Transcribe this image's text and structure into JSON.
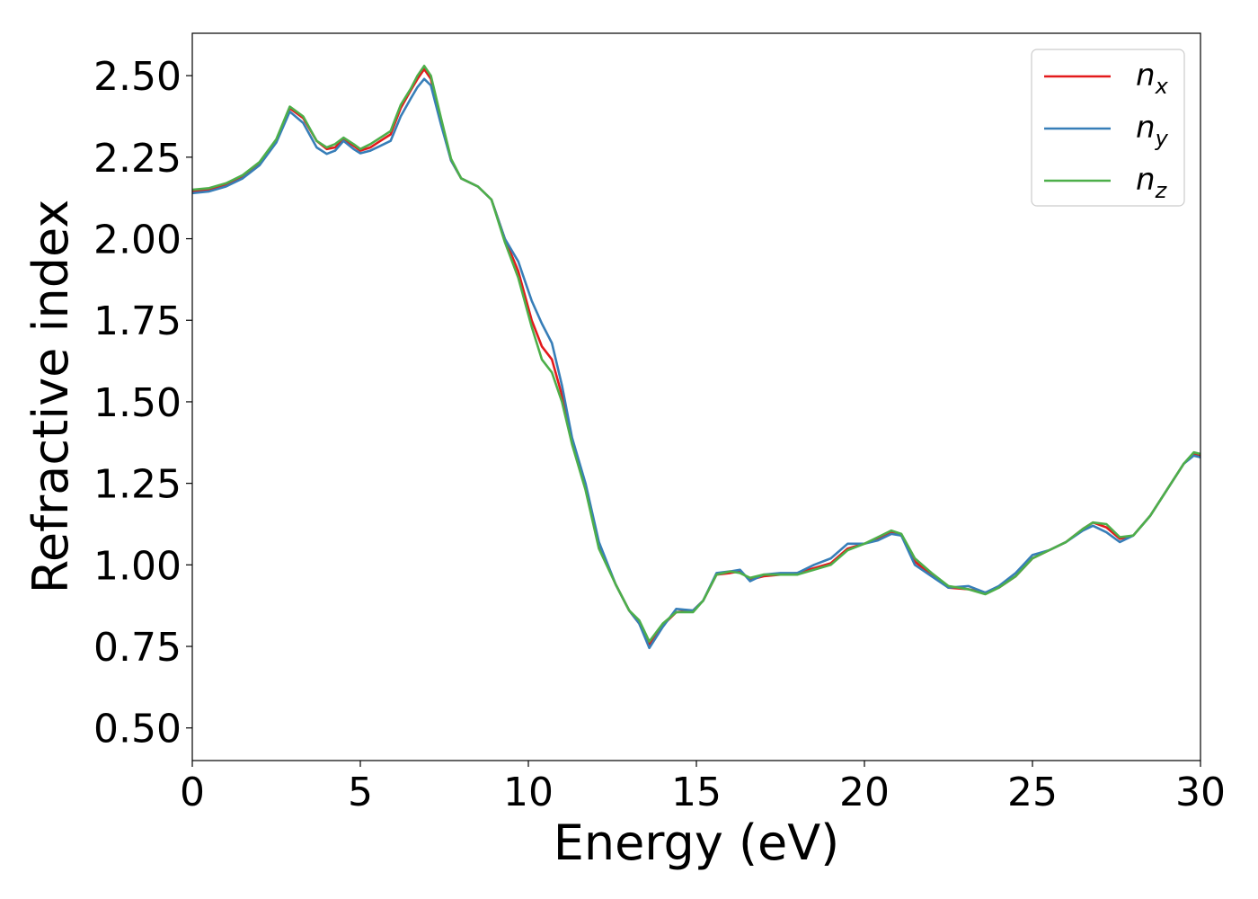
{
  "chart_data": {
    "type": "line",
    "title": "",
    "xlabel": "Energy (eV)",
    "ylabel": "Refractive index",
    "xlim": [
      0,
      30
    ],
    "ylim": [
      0.4,
      2.63
    ],
    "x_ticks": [
      "0",
      "5",
      "10",
      "15",
      "20",
      "25",
      "30"
    ],
    "y_ticks": [
      "0.50",
      "0.75",
      "1.00",
      "1.25",
      "1.50",
      "1.75",
      "2.00",
      "2.25",
      "2.50"
    ],
    "grid": false,
    "legend_position": "top-right",
    "series": [
      {
        "name": "n_x",
        "symbol": "n",
        "subscript": "x",
        "color": "#e31a1c",
        "points": [
          [
            0,
            2.145
          ],
          [
            0.5,
            2.15
          ],
          [
            1,
            2.165
          ],
          [
            1.5,
            2.19
          ],
          [
            2,
            2.23
          ],
          [
            2.5,
            2.3
          ],
          [
            2.9,
            2.4
          ],
          [
            3.3,
            2.37
          ],
          [
            3.7,
            2.3
          ],
          [
            4,
            2.275
          ],
          [
            4.25,
            2.28
          ],
          [
            4.5,
            2.305
          ],
          [
            4.8,
            2.285
          ],
          [
            5,
            2.27
          ],
          [
            5.3,
            2.28
          ],
          [
            5.6,
            2.3
          ],
          [
            5.9,
            2.32
          ],
          [
            6.2,
            2.4
          ],
          [
            6.5,
            2.455
          ],
          [
            6.7,
            2.49
          ],
          [
            6.9,
            2.52
          ],
          [
            7.1,
            2.49
          ],
          [
            7.4,
            2.36
          ],
          [
            7.7,
            2.24
          ],
          [
            8,
            2.185
          ],
          [
            8.5,
            2.16
          ],
          [
            8.9,
            2.12
          ],
          [
            9.3,
            2.0
          ],
          [
            9.7,
            1.9
          ],
          [
            10.1,
            1.75
          ],
          [
            10.4,
            1.67
          ],
          [
            10.7,
            1.63
          ],
          [
            11,
            1.52
          ],
          [
            11.3,
            1.38
          ],
          [
            11.7,
            1.24
          ],
          [
            12.1,
            1.06
          ],
          [
            12.6,
            0.94
          ],
          [
            13,
            0.86
          ],
          [
            13.3,
            0.82
          ],
          [
            13.6,
            0.755
          ],
          [
            14,
            0.815
          ],
          [
            14.4,
            0.855
          ],
          [
            14.9,
            0.86
          ],
          [
            15.2,
            0.89
          ],
          [
            15.6,
            0.97
          ],
          [
            16,
            0.975
          ],
          [
            16.3,
            0.98
          ],
          [
            16.6,
            0.955
          ],
          [
            17,
            0.965
          ],
          [
            17.5,
            0.97
          ],
          [
            18,
            0.975
          ],
          [
            18.5,
            0.99
          ],
          [
            19,
            1.005
          ],
          [
            19.5,
            1.05
          ],
          [
            20,
            1.065
          ],
          [
            20.4,
            1.08
          ],
          [
            20.8,
            1.1
          ],
          [
            21.1,
            1.09
          ],
          [
            21.5,
            1.01
          ],
          [
            22,
            0.97
          ],
          [
            22.5,
            0.93
          ],
          [
            23.1,
            0.925
          ],
          [
            23.6,
            0.915
          ],
          [
            24,
            0.93
          ],
          [
            24.5,
            0.965
          ],
          [
            25,
            1.02
          ],
          [
            25.5,
            1.045
          ],
          [
            26,
            1.07
          ],
          [
            26.5,
            1.11
          ],
          [
            26.8,
            1.13
          ],
          [
            27.2,
            1.115
          ],
          [
            27.6,
            1.08
          ],
          [
            28,
            1.09
          ],
          [
            28.5,
            1.15
          ],
          [
            29,
            1.23
          ],
          [
            29.5,
            1.31
          ],
          [
            29.8,
            1.34
          ],
          [
            30,
            1.335
          ]
        ]
      },
      {
        "name": "n_y",
        "symbol": "n",
        "subscript": "y",
        "color": "#377eb8",
        "points": [
          [
            0,
            2.14
          ],
          [
            0.5,
            2.145
          ],
          [
            1,
            2.16
          ],
          [
            1.5,
            2.185
          ],
          [
            2,
            2.225
          ],
          [
            2.5,
            2.295
          ],
          [
            2.9,
            2.39
          ],
          [
            3.3,
            2.355
          ],
          [
            3.7,
            2.28
          ],
          [
            4,
            2.26
          ],
          [
            4.25,
            2.27
          ],
          [
            4.5,
            2.3
          ],
          [
            4.8,
            2.275
          ],
          [
            5,
            2.262
          ],
          [
            5.3,
            2.27
          ],
          [
            5.6,
            2.285
          ],
          [
            5.9,
            2.3
          ],
          [
            6.2,
            2.375
          ],
          [
            6.5,
            2.43
          ],
          [
            6.7,
            2.465
          ],
          [
            6.9,
            2.49
          ],
          [
            7.1,
            2.47
          ],
          [
            7.4,
            2.35
          ],
          [
            7.7,
            2.24
          ],
          [
            8,
            2.185
          ],
          [
            8.5,
            2.16
          ],
          [
            8.9,
            2.12
          ],
          [
            9.3,
            2.0
          ],
          [
            9.7,
            1.93
          ],
          [
            10.1,
            1.81
          ],
          [
            10.4,
            1.74
          ],
          [
            10.7,
            1.68
          ],
          [
            11,
            1.55
          ],
          [
            11.3,
            1.39
          ],
          [
            11.7,
            1.25
          ],
          [
            12.1,
            1.07
          ],
          [
            12.6,
            0.94
          ],
          [
            13,
            0.86
          ],
          [
            13.3,
            0.82
          ],
          [
            13.6,
            0.745
          ],
          [
            14,
            0.81
          ],
          [
            14.4,
            0.865
          ],
          [
            14.9,
            0.86
          ],
          [
            15.2,
            0.89
          ],
          [
            15.6,
            0.975
          ],
          [
            16,
            0.98
          ],
          [
            16.3,
            0.985
          ],
          [
            16.6,
            0.95
          ],
          [
            17,
            0.97
          ],
          [
            17.5,
            0.975
          ],
          [
            18,
            0.975
          ],
          [
            18.5,
            1.0
          ],
          [
            19,
            1.02
          ],
          [
            19.5,
            1.065
          ],
          [
            20,
            1.065
          ],
          [
            20.4,
            1.075
          ],
          [
            20.8,
            1.095
          ],
          [
            21.1,
            1.09
          ],
          [
            21.5,
            1.0
          ],
          [
            22,
            0.965
          ],
          [
            22.5,
            0.93
          ],
          [
            23.1,
            0.935
          ],
          [
            23.6,
            0.915
          ],
          [
            24,
            0.935
          ],
          [
            24.5,
            0.975
          ],
          [
            25,
            1.03
          ],
          [
            25.5,
            1.045
          ],
          [
            26,
            1.07
          ],
          [
            26.5,
            1.105
          ],
          [
            26.8,
            1.12
          ],
          [
            27.2,
            1.1
          ],
          [
            27.6,
            1.07
          ],
          [
            28,
            1.09
          ],
          [
            28.5,
            1.15
          ],
          [
            29,
            1.23
          ],
          [
            29.5,
            1.31
          ],
          [
            29.8,
            1.335
          ],
          [
            30,
            1.33
          ]
        ]
      },
      {
        "name": "n_z",
        "symbol": "n",
        "subscript": "z",
        "color": "#4daf4a",
        "points": [
          [
            0,
            2.15
          ],
          [
            0.5,
            2.155
          ],
          [
            1,
            2.17
          ],
          [
            1.5,
            2.195
          ],
          [
            2,
            2.235
          ],
          [
            2.5,
            2.305
          ],
          [
            2.9,
            2.405
          ],
          [
            3.3,
            2.375
          ],
          [
            3.7,
            2.3
          ],
          [
            4,
            2.28
          ],
          [
            4.25,
            2.29
          ],
          [
            4.5,
            2.31
          ],
          [
            4.8,
            2.29
          ],
          [
            5,
            2.275
          ],
          [
            5.3,
            2.29
          ],
          [
            5.6,
            2.31
          ],
          [
            5.9,
            2.33
          ],
          [
            6.2,
            2.41
          ],
          [
            6.5,
            2.46
          ],
          [
            6.7,
            2.5
          ],
          [
            6.9,
            2.53
          ],
          [
            7.1,
            2.5
          ],
          [
            7.4,
            2.37
          ],
          [
            7.7,
            2.245
          ],
          [
            8,
            2.185
          ],
          [
            8.5,
            2.16
          ],
          [
            8.9,
            2.12
          ],
          [
            9.3,
            1.99
          ],
          [
            9.7,
            1.88
          ],
          [
            10.1,
            1.73
          ],
          [
            10.4,
            1.63
          ],
          [
            10.7,
            1.59
          ],
          [
            11,
            1.5
          ],
          [
            11.3,
            1.37
          ],
          [
            11.7,
            1.23
          ],
          [
            12.1,
            1.05
          ],
          [
            12.6,
            0.94
          ],
          [
            13,
            0.86
          ],
          [
            13.3,
            0.83
          ],
          [
            13.6,
            0.765
          ],
          [
            14,
            0.82
          ],
          [
            14.4,
            0.855
          ],
          [
            14.9,
            0.855
          ],
          [
            15.2,
            0.89
          ],
          [
            15.6,
            0.97
          ],
          [
            16,
            0.98
          ],
          [
            16.3,
            0.975
          ],
          [
            16.6,
            0.96
          ],
          [
            17,
            0.97
          ],
          [
            17.5,
            0.97
          ],
          [
            18,
            0.97
          ],
          [
            18.5,
            0.985
          ],
          [
            19,
            1.0
          ],
          [
            19.5,
            1.045
          ],
          [
            20,
            1.065
          ],
          [
            20.4,
            1.085
          ],
          [
            20.8,
            1.105
          ],
          [
            21.1,
            1.095
          ],
          [
            21.5,
            1.02
          ],
          [
            22,
            0.975
          ],
          [
            22.5,
            0.935
          ],
          [
            23.1,
            0.925
          ],
          [
            23.6,
            0.91
          ],
          [
            24,
            0.93
          ],
          [
            24.5,
            0.965
          ],
          [
            25,
            1.02
          ],
          [
            25.5,
            1.045
          ],
          [
            26,
            1.07
          ],
          [
            26.5,
            1.11
          ],
          [
            26.8,
            1.13
          ],
          [
            27.2,
            1.125
          ],
          [
            27.6,
            1.085
          ],
          [
            28,
            1.09
          ],
          [
            28.5,
            1.15
          ],
          [
            29,
            1.23
          ],
          [
            29.5,
            1.31
          ],
          [
            29.8,
            1.345
          ],
          [
            30,
            1.34
          ]
        ]
      }
    ]
  }
}
